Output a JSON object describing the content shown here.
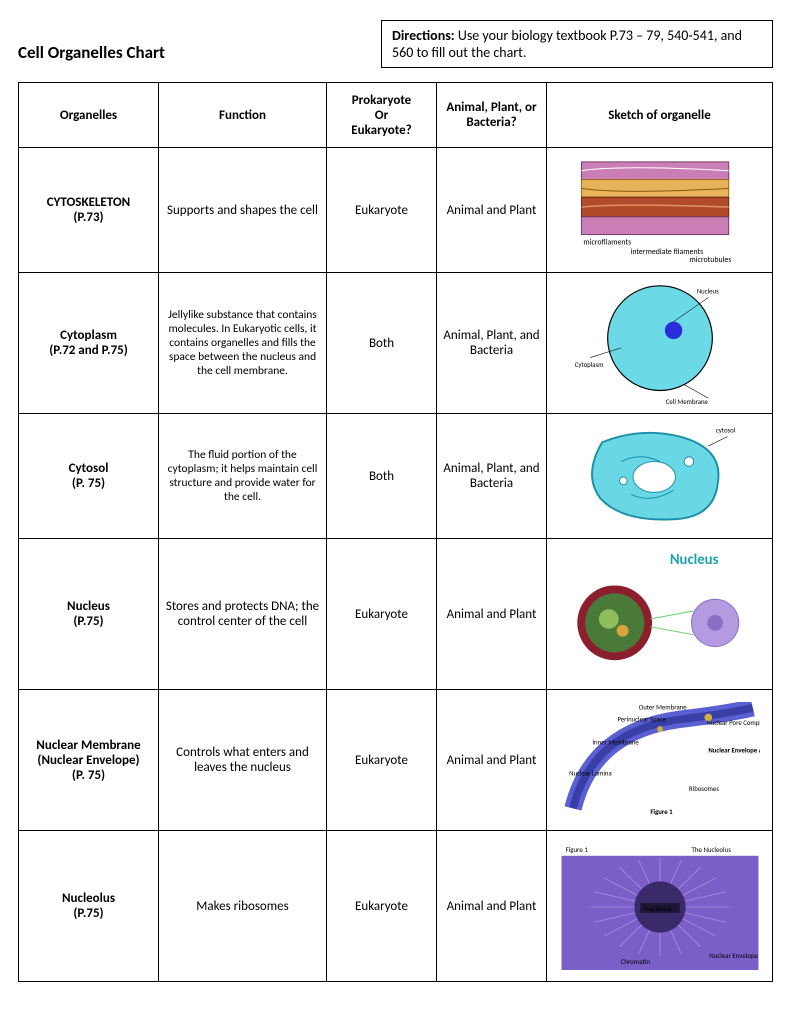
{
  "title": "Cell Organelles Chart",
  "directions": {
    "label": "Directions:",
    "text": " Use your biology textbook P.73 – 79, 540-541, and 560 to fill out the chart."
  },
  "columns": [
    "Organelles",
    "Function",
    "Prokaryote\nOr\nEukaryote?",
    "Animal, Plant, or Bacteria?",
    "Sketch of organelle"
  ],
  "rows": [
    {
      "organelle": "CYTOSKELETON",
      "page": "(P.73)",
      "function": "Supports and shapes the cell",
      "pk_or_euk": "Eukaryote",
      "apb": "Animal and Plant",
      "sketch": {
        "type": "cytoskeleton",
        "colors": {
          "layer1": "#c97fb5",
          "layer2": "#e8b45a",
          "layer3": "#b04a2a",
          "layer4": "#c97fb5"
        },
        "labels": [
          "microfilaments",
          "intermediate filaments",
          "microtubules"
        ]
      }
    },
    {
      "organelle": "Cytoplasm",
      "page": "(P.72 and P.75)",
      "function": "Jellylike substance that contains molecules. In Eukaryotic cells, it contains organelles and fills the space between the nucleus and the cell membrane.",
      "pk_or_euk": "Both",
      "apb": "Animal, Plant, and Bacteria",
      "sketch": {
        "type": "cytoplasm",
        "colors": {
          "cyto": "#6bd9e6",
          "nucleus": "#2b2ddc",
          "membrane": "#000000"
        },
        "labels": [
          "Nucleus",
          "Cytoplasm",
          "Cell Membrane"
        ]
      }
    },
    {
      "organelle": "Cytosol",
      "page": "(P. 75)",
      "function": "The fluid portion of the cytoplasm; it helps maintain cell structure and provide water for the cell.",
      "pk_or_euk": "Both",
      "apb": "Animal, Plant, and Bacteria",
      "sketch": {
        "type": "cytosol",
        "colors": {
          "fill": "#6ad8e4",
          "outline": "#1a8fa8",
          "organelle": "#ffffff"
        },
        "label": "cytosol"
      }
    },
    {
      "organelle": "Nucleus",
      "page": "(P.75)",
      "function": "Stores and protects DNA; the control center of the cell",
      "pk_or_euk": "Eukaryote",
      "apb": "Animal and Plant",
      "sketch": {
        "type": "nucleus",
        "title": "Nucleus",
        "title_color": "#1aa3b5",
        "colors": {
          "outer": "#8c1f2d",
          "inner": "#4a7a3a",
          "inner2": "#8fbf5a",
          "pore": "#d9a43a",
          "simple": "#b49ae0"
        }
      }
    },
    {
      "organelle": "Nuclear Membrane (Nuclear Envelope)",
      "page": "(P. 75)",
      "function": "Controls what enters and leaves the nucleus",
      "pk_or_euk": "Eukaryote",
      "apb": "Animal and Plant",
      "sketch": {
        "type": "nuclear-membrane",
        "colors": {
          "membrane": "#5a5fd1",
          "shade": "#3a3fa8"
        },
        "labels": [
          "Outer Membrane",
          "Perinuclear Space",
          "Inner Membrane",
          "Nuclear Lamina",
          "Nuclear Pore Complex",
          "Nuclear Envelope Anatomy",
          "Ribosomes"
        ],
        "caption": "Figure 1"
      }
    },
    {
      "organelle": "Nucleolus",
      "page": "(P.75)",
      "function": "Makes ribosomes",
      "pk_or_euk": "Eukaryote",
      "apb": "Animal and Plant",
      "sketch": {
        "type": "nucleolus",
        "colors": {
          "bg": "#7a5fc9",
          "nucleolus": "#3a2a6a",
          "fibers": "#a890e0"
        },
        "caption": "Figure 1",
        "title": "The Nucleolus",
        "labels": [
          "Nucleolus",
          "Chromatin",
          "Nuclear Envelope"
        ]
      }
    }
  ],
  "row_heights": [
    "row-med",
    "row-tall",
    "row-med",
    "row-big",
    "row-tall",
    "row-big"
  ]
}
